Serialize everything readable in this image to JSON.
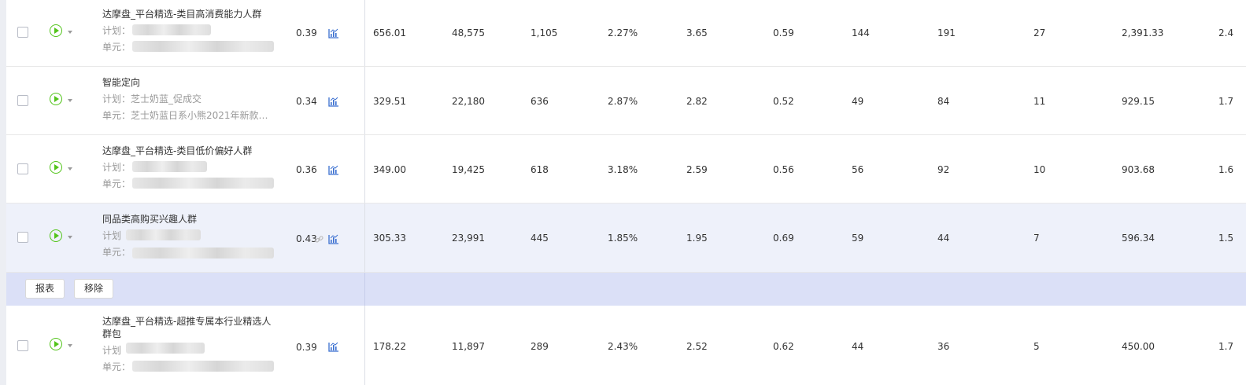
{
  "rows": [
    {
      "name": "达摩盘_平台精选-类目高消费能力人群",
      "plan_label": "计划：",
      "unit_label": "单元：",
      "bid": "0.39",
      "cols": [
        "656.01",
        "48,575",
        "1,105",
        "2.27%",
        "3.65",
        "0.59",
        "144",
        "191",
        "27",
        "2,391.33",
        "2.4"
      ]
    },
    {
      "name": "智能定向",
      "plan_label": "计划：芝士奶蓝_促成交",
      "unit_label": "单元：芝士奶蓝日系小熊2021年新款睡...",
      "bid": "0.34",
      "cols": [
        "329.51",
        "22,180",
        "636",
        "2.87%",
        "2.82",
        "0.52",
        "49",
        "84",
        "11",
        "929.15",
        "1.7"
      ]
    },
    {
      "name": "达摩盘_平台精选-类目低价偏好人群",
      "plan_label": "计划：",
      "unit_label": "单元：",
      "bid": "0.36",
      "cols": [
        "349.00",
        "19,425",
        "618",
        "3.18%",
        "2.59",
        "0.56",
        "56",
        "92",
        "10",
        "903.68",
        "1.6"
      ]
    },
    {
      "name": "同品类高购买兴趣人群",
      "plan_label": "计划",
      "unit_label": "单元：",
      "bid": "0.43",
      "cols": [
        "305.33",
        "23,991",
        "445",
        "1.85%",
        "1.95",
        "0.69",
        "59",
        "44",
        "7",
        "596.34",
        "1.5"
      ]
    },
    {
      "name": "达摩盘_平台精选-超推专属本行业精选人群包",
      "plan_label": "计划",
      "unit_label": "单元：",
      "bid": "0.39",
      "cols": [
        "178.22",
        "11,897",
        "289",
        "2.43%",
        "2.52",
        "0.62",
        "44",
        "36",
        "5",
        "450.00",
        "1.7"
      ]
    }
  ],
  "actions": {
    "report_label": "报表",
    "remove_label": "移除"
  },
  "colors": {
    "accent_green": "#52c41a",
    "chart_icon_blue": "#3a6fd0",
    "highlight_row": "#eef1fa",
    "action_bar": "#dbe0f7"
  },
  "icons": {
    "play": "play-circle-icon",
    "trend": "bar-chart-icon",
    "link": "link-icon"
  }
}
